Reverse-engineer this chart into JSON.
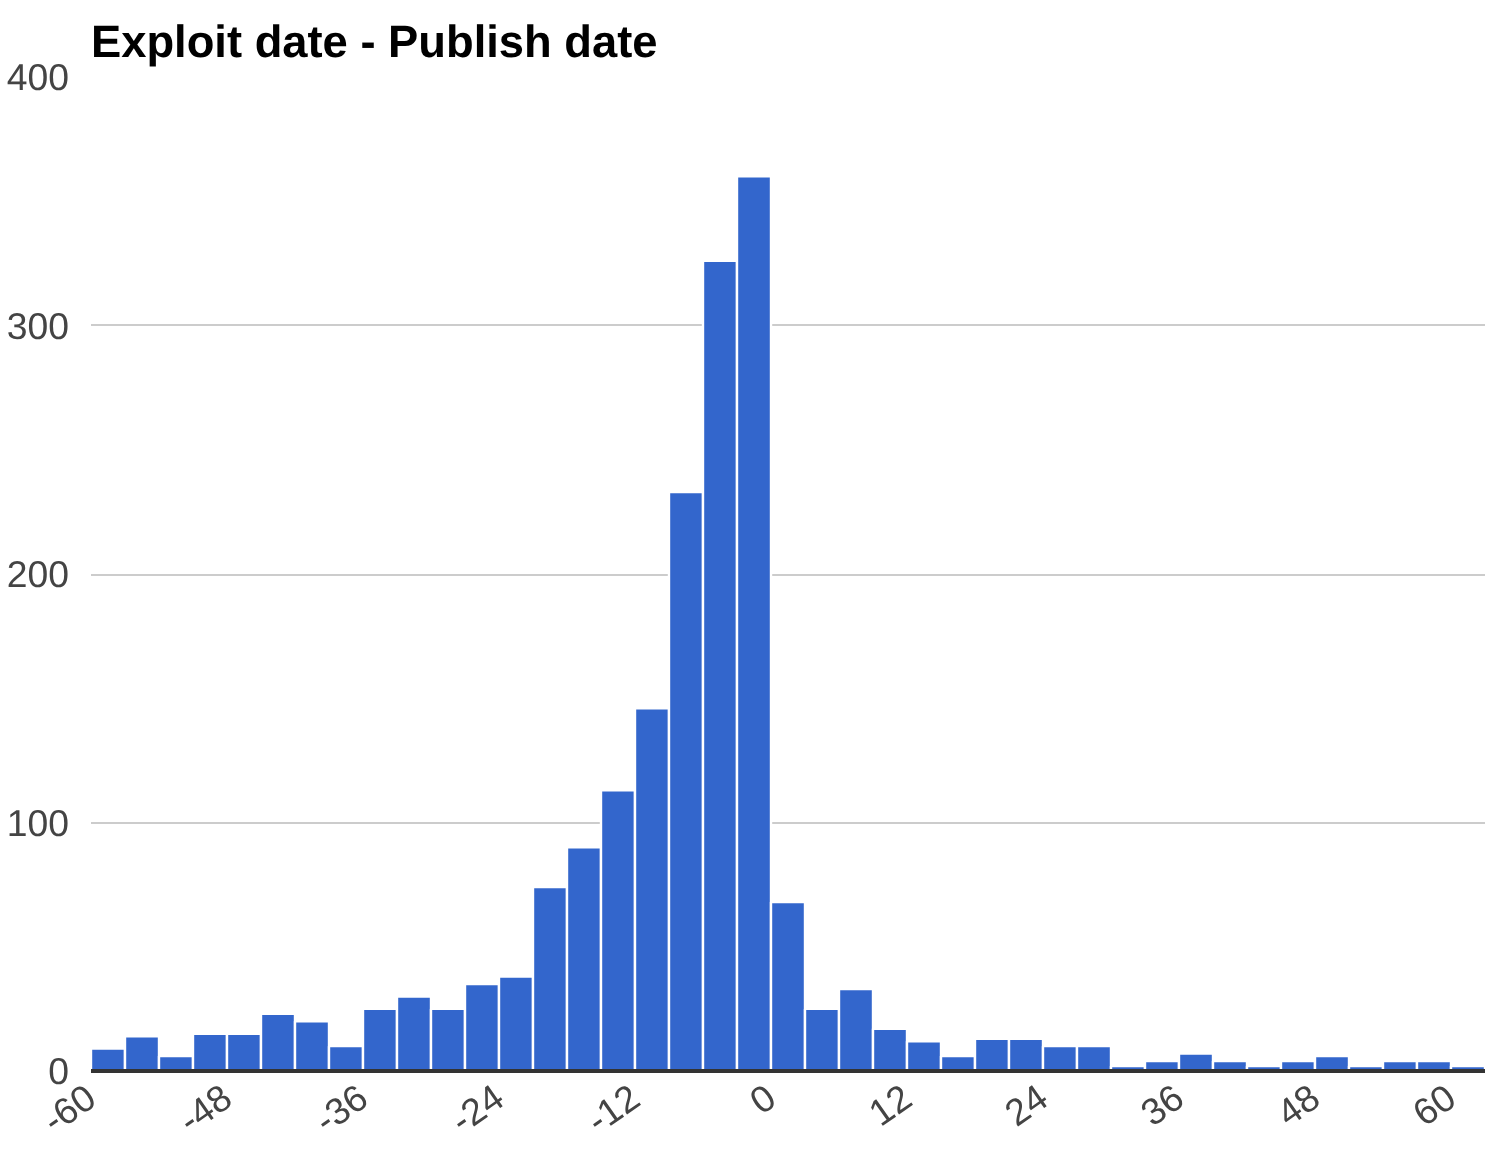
{
  "chart_data": {
    "type": "histogram",
    "title": "Exploit date - Publish date",
    "bins": [
      -60,
      -57,
      -54,
      -51,
      -48,
      -45,
      -42,
      -39,
      -36,
      -33,
      -30,
      -27,
      -24,
      -21,
      -18,
      -15,
      -12,
      -9,
      -6,
      -3,
      0,
      3,
      6,
      9,
      12,
      15,
      18,
      21,
      24,
      27,
      30,
      33,
      36,
      39,
      42,
      45,
      48,
      51,
      54,
      57,
      60,
      63
    ],
    "values": [
      9,
      14,
      6,
      15,
      15,
      23,
      20,
      10,
      25,
      30,
      25,
      35,
      38,
      74,
      90,
      113,
      146,
      233,
      326,
      360,
      68,
      25,
      33,
      17,
      12,
      6,
      13,
      13,
      10,
      10,
      2,
      4,
      7,
      4,
      2,
      4,
      6,
      2,
      4,
      4,
      2
    ],
    "color": "#3366cc",
    "xlim": [
      -60,
      63
    ],
    "xticks": [
      -60,
      -48,
      -36,
      -24,
      -12,
      0,
      12,
      24,
      36,
      48,
      60
    ],
    "ylim": [
      0,
      400
    ],
    "yticks": [
      0,
      100,
      200,
      300,
      400
    ],
    "grid": "y"
  }
}
